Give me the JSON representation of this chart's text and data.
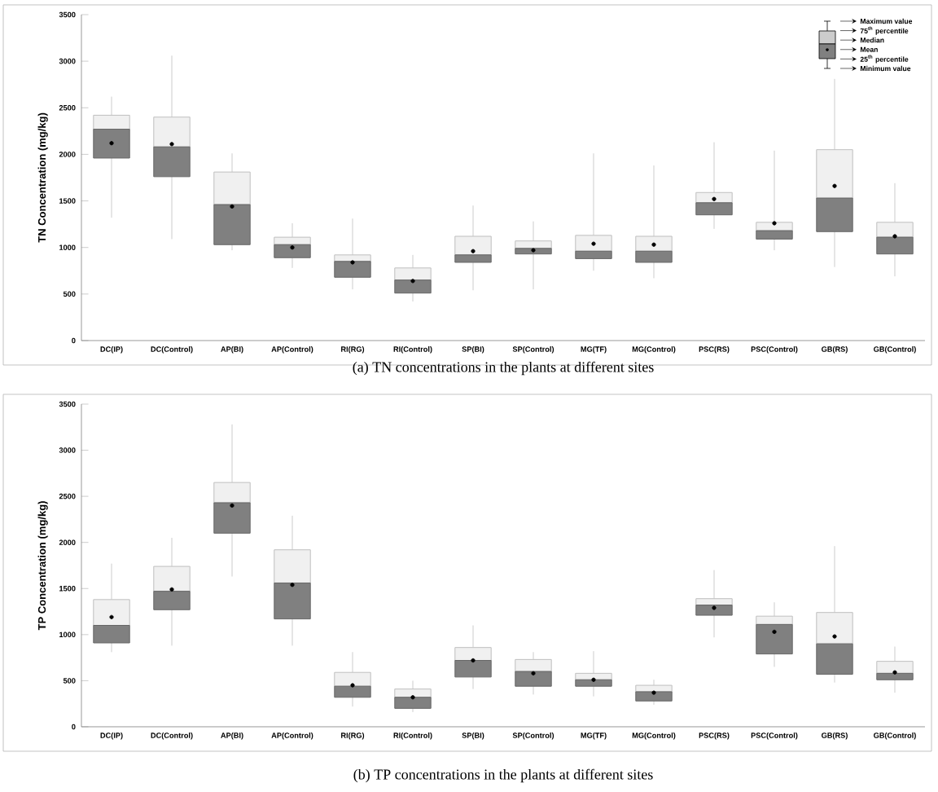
{
  "chart_data": [
    {
      "type": "box",
      "ylabel": "TN Concentration (mg/kg)",
      "categories": [
        "DC(IP)",
        "DC(Control)",
        "AP(BI)",
        "AP(Control)",
        "RI(RG)",
        "RI(Control)",
        "SP(BI)",
        "SP(Control)",
        "MG(TF)",
        "MG(Control)",
        "PSC(RS)",
        "PSC(Control)",
        "GB(RS)",
        "GB(Control)"
      ],
      "ylim": [
        0,
        3500
      ],
      "yticks": [
        0,
        500,
        1000,
        1500,
        2000,
        2500,
        3000,
        3500
      ],
      "series": [
        {
          "color": "#808080",
          "boxes": [
            {
              "low": 1320,
              "q1": 1960,
              "median": 2270,
              "q3": 2420,
              "high": 2620,
              "mean": 2120
            },
            {
              "low": 1090,
              "q1": 1760,
              "median": 2080,
              "q3": 2400,
              "high": 3060,
              "mean": 2110
            },
            {
              "low": 970,
              "q1": 1030,
              "median": 1460,
              "q3": 1810,
              "high": 2010,
              "mean": 1440
            },
            {
              "low": 780,
              "q1": 890,
              "median": 1030,
              "q3": 1110,
              "high": 1260,
              "mean": 1000
            },
            {
              "low": 550,
              "q1": 680,
              "median": 850,
              "q3": 920,
              "high": 1310,
              "mean": 840
            },
            {
              "low": 420,
              "q1": 510,
              "median": 650,
              "q3": 780,
              "high": 920,
              "mean": 640
            },
            {
              "low": 540,
              "q1": 840,
              "median": 920,
              "q3": 1120,
              "high": 1450,
              "mean": 960
            },
            {
              "low": 550,
              "q1": 930,
              "median": 990,
              "q3": 1070,
              "high": 1280,
              "mean": 970
            },
            {
              "low": 750,
              "q1": 880,
              "median": 960,
              "q3": 1130,
              "high": 2010,
              "mean": 1040
            },
            {
              "low": 670,
              "q1": 840,
              "median": 960,
              "q3": 1120,
              "high": 1880,
              "mean": 1030
            },
            {
              "low": 1200,
              "q1": 1350,
              "median": 1480,
              "q3": 1590,
              "high": 2130,
              "mean": 1520
            },
            {
              "low": 970,
              "q1": 1090,
              "median": 1180,
              "q3": 1270,
              "high": 2040,
              "mean": 1260
            },
            {
              "low": 790,
              "q1": 1170,
              "median": 1530,
              "q3": 2050,
              "high": 2810,
              "mean": 1660
            },
            {
              "low": 690,
              "q1": 930,
              "median": 1110,
              "q3": 1270,
              "high": 1690,
              "mean": 1120
            }
          ]
        }
      ],
      "annotations": [
        "Maximum value",
        "75$^{th}$ percentile",
        "Median",
        "Mean",
        "25$^{th}$ percentile",
        "Minimum value",
        "(a) TN concentrations in the plants at different sites"
      ]
    },
    {
      "type": "box",
      "ylabel": "TP Concentration (mg/kg)",
      "categories": [
        "DC(IP)",
        "DC(Control)",
        "AP(BI)",
        "AP(Control)",
        "RI(RG)",
        "RI(Control)",
        "SP(BI)",
        "SP(Control)",
        "MG(TF)",
        "MG(Control)",
        "PSC(RS)",
        "PSC(Control)",
        "GB(RS)",
        "GB(Control)"
      ],
      "ylim": [
        0,
        3500
      ],
      "yticks": [
        0,
        500,
        1000,
        1500,
        2000,
        2500,
        3000,
        3500
      ],
      "series": [
        {
          "color": "#808080",
          "boxes": [
            {
              "low": 810,
              "q1": 910,
              "median": 1100,
              "q3": 1380,
              "high": 1770,
              "mean": 1190
            },
            {
              "low": 880,
              "q1": 1270,
              "median": 1470,
              "q3": 1740,
              "high": 2050,
              "mean": 1490
            },
            {
              "low": 1630,
              "q1": 2100,
              "median": 2430,
              "q3": 2650,
              "high": 3280,
              "mean": 2400
            },
            {
              "low": 880,
              "q1": 1170,
              "median": 1560,
              "q3": 1920,
              "high": 2290,
              "mean": 1540
            },
            {
              "low": 220,
              "q1": 320,
              "median": 440,
              "q3": 590,
              "high": 810,
              "mean": 450
            },
            {
              "low": 160,
              "q1": 200,
              "median": 320,
              "q3": 410,
              "high": 500,
              "mean": 320
            },
            {
              "low": 410,
              "q1": 540,
              "median": 720,
              "q3": 860,
              "high": 1100,
              "mean": 720
            },
            {
              "low": 350,
              "q1": 440,
              "median": 600,
              "q3": 730,
              "high": 810,
              "mean": 580
            },
            {
              "low": 330,
              "q1": 440,
              "median": 510,
              "q3": 580,
              "high": 820,
              "mean": 510
            },
            {
              "low": 240,
              "q1": 280,
              "median": 380,
              "q3": 450,
              "high": 510,
              "mean": 370
            },
            {
              "low": 970,
              "q1": 1210,
              "median": 1320,
              "q3": 1390,
              "high": 1700,
              "mean": 1290
            },
            {
              "low": 650,
              "q1": 790,
              "median": 1110,
              "q3": 1200,
              "high": 1350,
              "mean": 1030
            },
            {
              "low": 480,
              "q1": 570,
              "median": 900,
              "q3": 1240,
              "high": 1960,
              "mean": 980
            },
            {
              "low": 370,
              "q1": 510,
              "median": 580,
              "q3": 710,
              "high": 870,
              "mean": 590
            }
          ]
        }
      ],
      "annotations": [
        "(b) TP concentrations in the plants at different sites"
      ]
    }
  ]
}
